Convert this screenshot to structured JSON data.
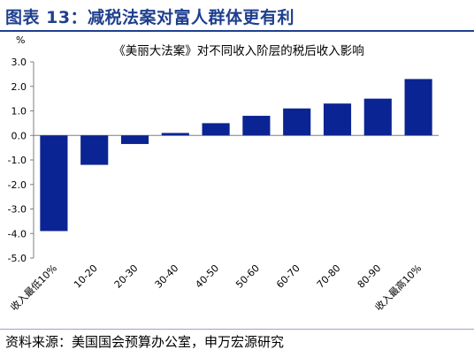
{
  "header": {
    "title": "图表 13：减税法案对富人群体更有利"
  },
  "footer": {
    "source": "资料来源：美国国会预算办公室，申万宏源研究"
  },
  "colors": {
    "bar": "#0b2493",
    "title": "#1f3f8f"
  },
  "chart_data": {
    "type": "bar",
    "title": "《美丽大法案》对不同收入阶层的税后收入影响",
    "ylabel": "%",
    "xlabel": "",
    "ylim": [
      -5.0,
      3.0
    ],
    "yticks": [
      "3.0",
      "2.0",
      "1.0",
      "0.0",
      "-1.0",
      "-2.0",
      "-3.0",
      "-4.0",
      "-5.0"
    ],
    "categories": [
      "收入最低10%",
      "10-20",
      "20-30",
      "30-40",
      "40-50",
      "50-60",
      "60-70",
      "70-80",
      "80-90",
      "收入最高10%"
    ],
    "values": [
      -3.9,
      -1.2,
      -0.35,
      0.1,
      0.5,
      0.8,
      1.1,
      1.3,
      1.5,
      2.3
    ],
    "grid": false,
    "legend": "none"
  }
}
